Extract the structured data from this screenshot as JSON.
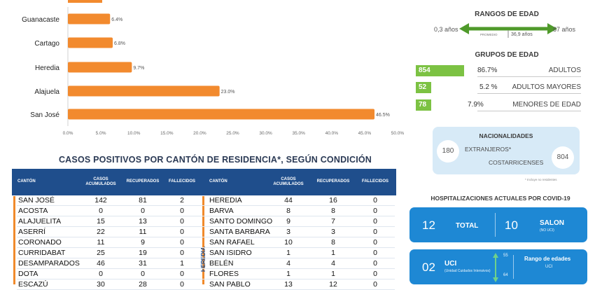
{
  "chart_data": {
    "type": "bar",
    "orientation": "horizontal",
    "categories": [
      "Guanacaste",
      "Cartago",
      "Heredia",
      "Alajuela",
      "San José"
    ],
    "values": [
      6.4,
      6.8,
      9.7,
      23.0,
      46.5
    ],
    "value_labels": [
      "6.4%",
      "6.8%",
      "9.7%",
      "23.0%",
      "46.5%"
    ],
    "xlim": [
      0,
      50
    ],
    "xticks": [
      "0.0%",
      "5.0%",
      "10.0%",
      "15.0%",
      "20.0%",
      "25.0%",
      "30.0%",
      "35.0%",
      "40.0%",
      "45.0%",
      "50.0%"
    ],
    "grid": false,
    "color": "#f28a2e"
  },
  "table": {
    "title": "CASOS POSITIVOS POR CANTÓN DE RESIDENCIA*, SEGÚN CONDICIÓN",
    "headers": [
      "CANTÓN",
      "CASOS ACUMULADOS",
      "RECUPERADOS",
      "FALLECIDOS",
      "CANTÓN",
      "CASOS ACUMULADOS",
      "RECUPERADOS",
      "FALLECIDOS"
    ],
    "region_label": "HEREDIA",
    "rows": [
      [
        "SAN JOSÉ",
        "142",
        "81",
        "2",
        "HEREDIA",
        "44",
        "16",
        "0"
      ],
      [
        "ACOSTA",
        "0",
        "0",
        "0",
        "BARVA",
        "8",
        "8",
        "0"
      ],
      [
        "ALAJUELITA",
        "15",
        "13",
        "0",
        "SANTO DOMINGO",
        "9",
        "7",
        "0"
      ],
      [
        "ASERRÍ",
        "22",
        "11",
        "0",
        "SANTA BARBARA",
        "3",
        "3",
        "0"
      ],
      [
        "CORONADO",
        "11",
        "9",
        "0",
        "SAN RAFAEL",
        "10",
        "8",
        "0"
      ],
      [
        "CURRIDABAT",
        "25",
        "19",
        "0",
        "SAN ISIDRO",
        "1",
        "1",
        "0"
      ],
      [
        "DESAMPARADOS",
        "46",
        "31",
        "1",
        "BELÉN",
        "4",
        "4",
        "0"
      ],
      [
        "DOTA",
        "0",
        "0",
        "0",
        "FLORES",
        "1",
        "1",
        "0"
      ],
      [
        "ESCAZÚ",
        "30",
        "28",
        "0",
        "SAN PABLO",
        "13",
        "12",
        "0"
      ]
    ]
  },
  "age_ranges": {
    "title": "RANGOS DE EDAD",
    "min": "0,3 años",
    "max": "87 años",
    "avg_label": "PROMEDIO",
    "avg_value": "36,9 años"
  },
  "age_groups": {
    "title": "GRUPOS DE EDAD",
    "items": [
      {
        "count": "854",
        "pct": "86.7%",
        "label": "ADULTOS",
        "fraction": 0.867
      },
      {
        "count": "52",
        "pct": "5.2 %",
        "label": "ADULTOS MAYORES",
        "fraction": 0.052
      },
      {
        "count": "78",
        "pct": "7.9%",
        "label": "MENORES DE EDAD",
        "fraction": 0.079
      }
    ]
  },
  "nationalities": {
    "title": "NACIONALIDADES",
    "foreign_count": "180",
    "foreign_label": "EXTRANJEROS*",
    "local_count": "804",
    "local_label": "COSTARRICENSES",
    "note": "* Incluye no residentes"
  },
  "hospital": {
    "title": "HOSPITALIZACIONES ACTUALES POR COVID-19",
    "total_value": "12",
    "total_label": "TOTAL",
    "salon_value": "10",
    "salon_label": "SALON",
    "salon_sub": "(NO UCI)",
    "uci_value": "02",
    "uci_label": "UCI",
    "uci_sub": "(Unidad Cuidados Intensivos)",
    "age_min": "55",
    "age_max": "64",
    "age_range_label": "Rango de edades",
    "age_range_sub": "UCI"
  },
  "colors": {
    "bar": "#f28a2e",
    "table_header": "#1f4e8c",
    "group_green": "#7cc243",
    "arrow_green": "#4f9a2a",
    "hospital_blue": "#1e88d4",
    "nationality_bg": "#d7eaf7"
  }
}
